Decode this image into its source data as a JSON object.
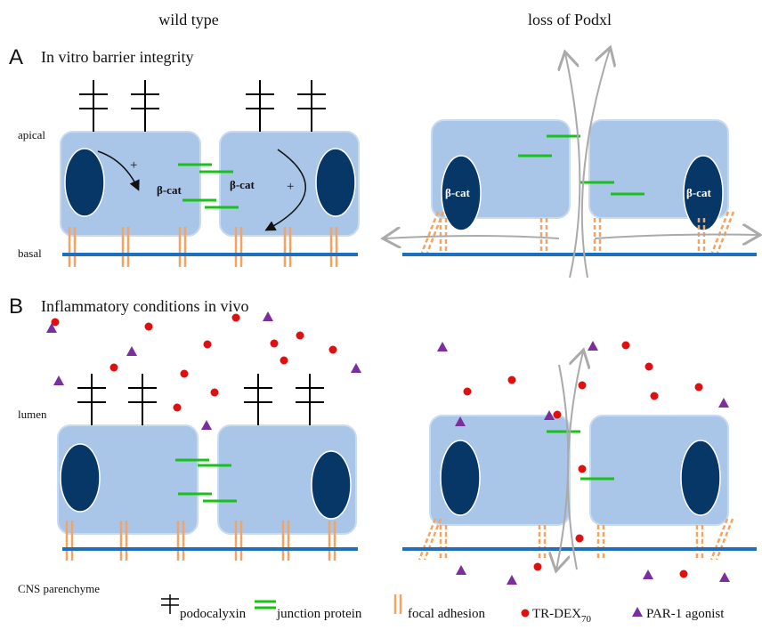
{
  "header": {
    "left": "wild type",
    "right": "loss of Podxl"
  },
  "panel_a": {
    "letter": "A",
    "title": "In vitro barrier integrity",
    "apical": "apical",
    "basal": "basal",
    "plus": "+",
    "beta_cat": "β-cat"
  },
  "panel_b": {
    "letter": "B",
    "title": "Inflammatory conditions in vivo",
    "lumen": "lumen",
    "parenchyme": "CNS parenchyme"
  },
  "legend": {
    "podocalyxin": "podocalyxin",
    "junction": "junction protein",
    "focal": "focal adhesion",
    "tr_dex": {
      "label": "TR-DEX",
      "subscript": "70"
    },
    "par1": "PAR-1 agonist"
  }
}
